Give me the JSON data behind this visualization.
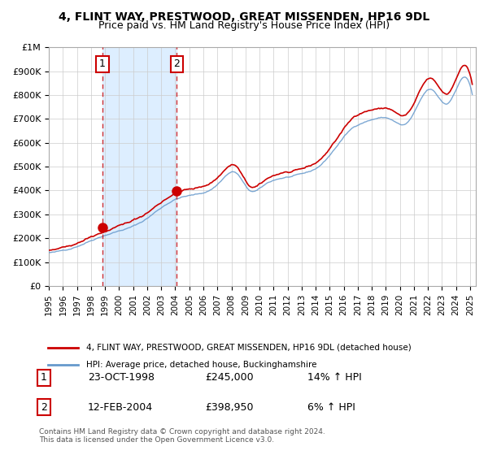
{
  "title": "4, FLINT WAY, PRESTWOOD, GREAT MISSENDEN, HP16 9DL",
  "subtitle": "Price paid vs. HM Land Registry's House Price Index (HPI)",
  "xlabel": "",
  "ylabel": "",
  "legend_line1": "4, FLINT WAY, PRESTWOOD, GREAT MISSENDEN, HP16 9DL (detached house)",
  "legend_line2": "HPI: Average price, detached house, Buckinghamshire",
  "red_line_color": "#cc0000",
  "blue_line_color": "#6699cc",
  "shading_color": "#ddeeff",
  "purchase1_date": "23-OCT-1998",
  "purchase1_price": 245000,
  "purchase1_label": "1",
  "purchase1_hpi_pct": "14% ↑ HPI",
  "purchase2_date": "12-FEB-2004",
  "purchase2_price": 398950,
  "purchase2_label": "2",
  "purchase2_hpi_pct": "6% ↑ HPI",
  "footnote": "Contains HM Land Registry data © Crown copyright and database right 2024.\nThis data is licensed under the Open Government Licence v3.0.",
  "ylim": [
    0,
    1000000
  ],
  "yticks": [
    0,
    100000,
    200000,
    300000,
    400000,
    500000,
    600000,
    700000,
    800000,
    900000,
    1000000
  ],
  "ytick_labels": [
    "£0",
    "£100K",
    "£200K",
    "£300K",
    "£400K",
    "£500K",
    "£600K",
    "£700K",
    "£800K",
    "£900K",
    "£1M"
  ],
  "start_year": 1995,
  "end_year": 2025
}
